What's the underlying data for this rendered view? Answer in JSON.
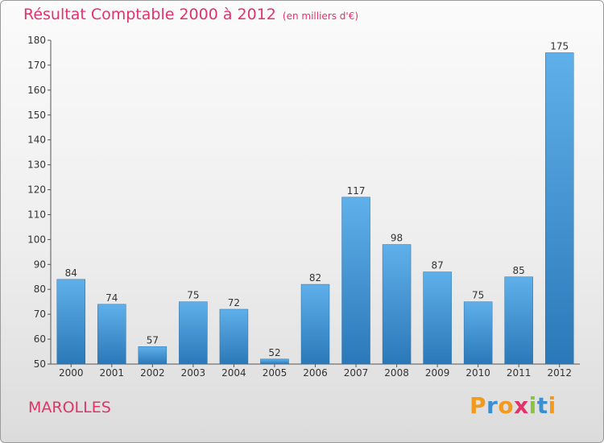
{
  "header": {
    "title": "Résultat Comptable 2000 à 2012",
    "unit": "(en milliers d'€)"
  },
  "commune": "MAROLLES",
  "logo": {
    "letters": [
      "P",
      "r",
      "o",
      "x",
      "i",
      "t",
      "i"
    ],
    "colors": [
      "#f39a1e",
      "#3a8fd0",
      "#f39a1e",
      "#e0336a",
      "#8ac43f",
      "#3a8fd0",
      "#f39a1e"
    ]
  },
  "chart_data": {
    "type": "bar",
    "title": "Résultat Comptable 2000 à 2012",
    "ylabel": "(en milliers d'€)",
    "xlabel": "",
    "categories": [
      "2000",
      "2001",
      "2002",
      "2003",
      "2004",
      "2005",
      "2006",
      "2007",
      "2008",
      "2009",
      "2010",
      "2011",
      "2012"
    ],
    "values": [
      84,
      74,
      57,
      75,
      72,
      52,
      82,
      117,
      98,
      87,
      75,
      85,
      175
    ],
    "ylim": [
      50,
      180
    ],
    "yticks": [
      50,
      60,
      70,
      80,
      90,
      100,
      110,
      120,
      130,
      140,
      150,
      160,
      170,
      180
    ],
    "bar_color": "#4f9fd8",
    "grid": false
  }
}
